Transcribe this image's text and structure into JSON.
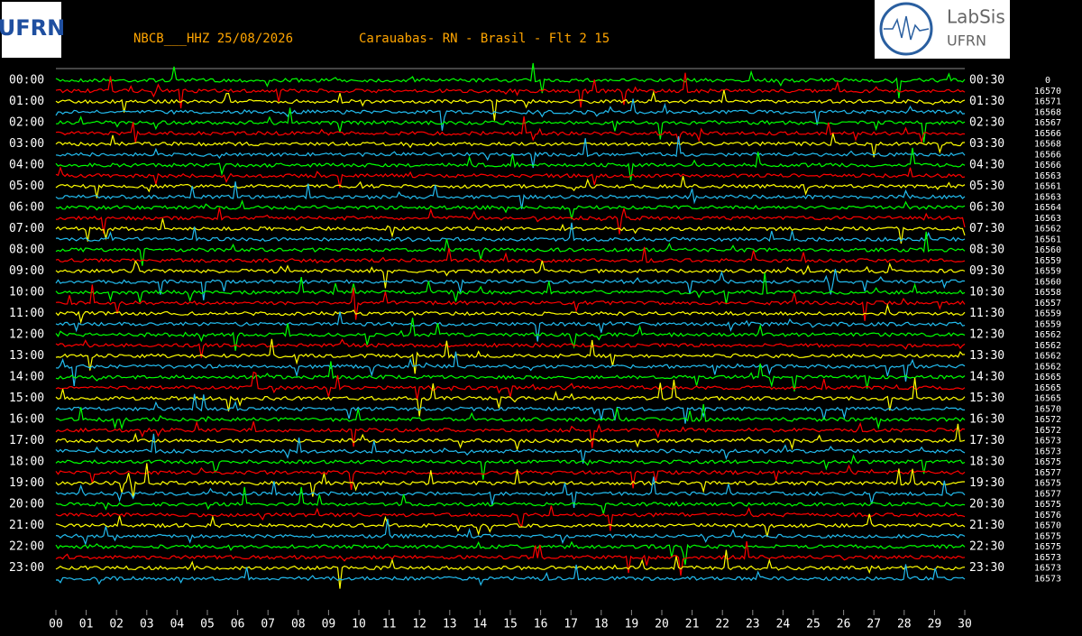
{
  "header": {
    "station": "NBCB___HHZ 25/08/2026",
    "location": "Carauabas- RN - Brasil - Flt 2 15"
  },
  "logos": {
    "left": "UFRN",
    "right_title": "LabSis",
    "right_sub": "UFRN"
  },
  "hours_left": [
    "00:00",
    "01:00",
    "02:00",
    "03:00",
    "04:00",
    "05:00",
    "06:00",
    "07:00",
    "08:00",
    "09:00",
    "10:00",
    "11:00",
    "12:00",
    "13:00",
    "14:00",
    "15:00",
    "16:00",
    "17:00",
    "18:00",
    "19:00",
    "20:00",
    "21:00",
    "22:00",
    "23:00"
  ],
  "hours_right": [
    "00:30",
    "01:30",
    "02:30",
    "03:30",
    "04:30",
    "05:30",
    "06:30",
    "07:30",
    "08:30",
    "09:30",
    "10:30",
    "11:30",
    "12:30",
    "13:30",
    "14:30",
    "15:30",
    "16:30",
    "17:30",
    "18:30",
    "19:30",
    "20:30",
    "21:30",
    "22:30",
    "23:30"
  ],
  "offsets": [
    0,
    16570,
    16571,
    16568,
    16567,
    16566,
    16568,
    16566,
    16566,
    16563,
    16561,
    16563,
    16564,
    16563,
    16562,
    16561,
    16560,
    16559,
    16559,
    16560,
    16558,
    16557,
    16559,
    16559,
    16562,
    16562,
    16562,
    16562,
    16565,
    16565,
    16565,
    16570,
    16572,
    16572,
    16573,
    16573,
    16575,
    16577,
    16575,
    16577,
    16575,
    16576,
    16570,
    16575,
    16575,
    16573,
    16573,
    16573
  ],
  "minutes": [
    "00",
    "01",
    "02",
    "03",
    "04",
    "05",
    "06",
    "07",
    "08",
    "09",
    "10",
    "11",
    "12",
    "13",
    "14",
    "15",
    "16",
    "17",
    "18",
    "19",
    "20",
    "21",
    "22",
    "23",
    "24",
    "25",
    "26",
    "27",
    "28",
    "29",
    "30"
  ],
  "trace_colors": [
    "#00ff00",
    "#ff0000",
    "#ffff00",
    "#22bbee"
  ]
}
